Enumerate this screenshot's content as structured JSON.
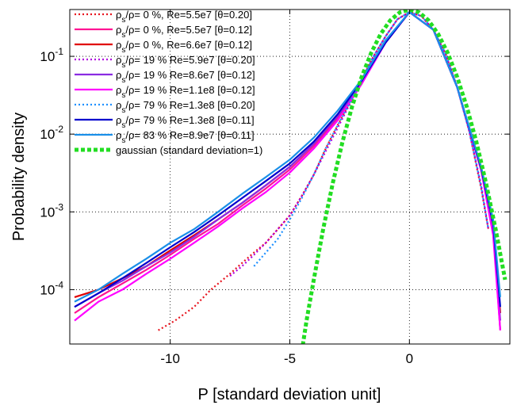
{
  "chart_data": {
    "type": "line",
    "title": "",
    "xlabel": "P [standard deviation unit]",
    "ylabel": "Probability density",
    "xlim": [
      -14.2,
      4.2
    ],
    "ylim": [
      2e-05,
      0.4
    ],
    "yscale": "log",
    "grid": true,
    "legend_position": "top-left",
    "x_ticks": [
      -10,
      -5,
      0
    ],
    "x_tick_labels": [
      "-10",
      "-5",
      "0"
    ],
    "y_ticks": [
      0.0001,
      0.001,
      0.01,
      0.1
    ],
    "y_tick_labels": [
      {
        "base": "10",
        "exp": "-4"
      },
      {
        "base": "10",
        "exp": "-3"
      },
      {
        "base": "10",
        "exp": "-2"
      },
      {
        "base": "10",
        "exp": "-1"
      }
    ],
    "series": [
      {
        "name": "ρs/ρ= 0 %, Re=5.5e7 [θ=0.20]",
        "color": "#e8141e",
        "dash": "dotted",
        "x": [
          -10.5,
          -9.8,
          -9.0,
          -8.3,
          -7.5,
          -7.0,
          -6.5,
          -6.0,
          -5.5,
          -5.0,
          -4.5,
          -4.0,
          -3.5,
          -3.0,
          -2.5,
          -2.0,
          -1.5,
          -1.0,
          -0.5,
          0,
          0.5,
          1.0,
          1.5,
          2.0,
          2.5,
          3.0,
          3.3
        ],
        "y": [
          3e-05,
          4e-05,
          6e-05,
          0.0001,
          0.00016,
          0.00022,
          0.0003,
          0.0004,
          0.0006,
          0.0009,
          0.0016,
          0.003,
          0.0065,
          0.013,
          0.025,
          0.05,
          0.1,
          0.18,
          0.3,
          0.37,
          0.33,
          0.22,
          0.11,
          0.04,
          0.011,
          0.002,
          0.0006
        ]
      },
      {
        "name": "ρs/ρ= 0 %, Re=5.5e7 [θ=0.12]",
        "color": "#ff1493",
        "dash": "solid",
        "x": [
          -14,
          -13,
          -12,
          -11,
          -10,
          -9,
          -8,
          -7,
          -6,
          -5,
          -4,
          -3,
          -2,
          -1,
          0,
          1,
          2,
          3,
          3.5,
          3.8
        ],
        "y": [
          5e-05,
          8e-05,
          0.00012,
          0.00018,
          0.00028,
          0.00045,
          0.0007,
          0.0012,
          0.002,
          0.0035,
          0.007,
          0.016,
          0.045,
          0.15,
          0.37,
          0.22,
          0.04,
          0.0035,
          0.0006,
          3e-05
        ]
      },
      {
        "name": "ρs/ρ= 0 %, Re=6.6e7 [θ=0.12]",
        "color": "#e00000",
        "dash": "solid",
        "x": [
          -14,
          -13,
          -12,
          -11,
          -10,
          -9,
          -8,
          -7,
          -6,
          -5,
          -4,
          -3,
          -2,
          -1,
          0,
          1,
          2,
          3,
          3.5,
          3.8
        ],
        "y": [
          8e-05,
          0.0001,
          0.00014,
          0.0002,
          0.00032,
          0.0005,
          0.0008,
          0.0013,
          0.0022,
          0.0038,
          0.0075,
          0.017,
          0.046,
          0.15,
          0.37,
          0.22,
          0.04,
          0.0036,
          0.0007,
          5e-05
        ]
      },
      {
        "name": "ρs/ρ= 19 % Re=5.9e7 [θ=0.20]",
        "color": "#b000e0",
        "dash": "dotted",
        "x": [
          -7.5,
          -7.0,
          -6.5,
          -6.0,
          -5.5,
          -5.0,
          -4.5,
          -4.0,
          -3.5,
          -3.0,
          -2.5,
          -2.0,
          -1.5,
          -1.0,
          -0.5,
          0,
          0.5,
          1.0,
          1.5,
          2.0,
          2.5,
          3.0,
          3.3
        ],
        "y": [
          0.00015,
          0.0002,
          0.00028,
          0.0004,
          0.0006,
          0.0009,
          0.0016,
          0.003,
          0.006,
          0.012,
          0.024,
          0.05,
          0.1,
          0.18,
          0.3,
          0.37,
          0.33,
          0.22,
          0.11,
          0.04,
          0.011,
          0.0022,
          0.0006
        ]
      },
      {
        "name": "ρs/ρ= 19 % Re=8.6e7 [θ=0.12]",
        "color": "#8a2be2",
        "dash": "solid",
        "x": [
          -14,
          -13,
          -12,
          -11,
          -10,
          -9,
          -8,
          -7,
          -6,
          -5,
          -4,
          -3,
          -2,
          -1,
          0,
          1,
          2,
          3,
          3.5,
          3.8
        ],
        "y": [
          6e-05,
          9e-05,
          0.00013,
          0.0002,
          0.0003,
          0.00048,
          0.0008,
          0.0013,
          0.0022,
          0.0038,
          0.0075,
          0.017,
          0.046,
          0.15,
          0.37,
          0.22,
          0.04,
          0.0035,
          0.0006,
          4e-05
        ]
      },
      {
        "name": "ρs/ρ= 19 % Re=1.1e8 [θ=0.12]",
        "color": "#ff00ff",
        "dash": "solid",
        "x": [
          -14,
          -13,
          -12,
          -11,
          -10,
          -9,
          -8,
          -7,
          -6,
          -5,
          -4,
          -3,
          -2,
          -1,
          0,
          1,
          2,
          3,
          3.5,
          3.8
        ],
        "y": [
          4e-05,
          7e-05,
          0.0001,
          0.00016,
          0.00025,
          0.0004,
          0.00065,
          0.0011,
          0.0018,
          0.0032,
          0.0065,
          0.015,
          0.044,
          0.15,
          0.37,
          0.22,
          0.04,
          0.0034,
          0.0005,
          3e-05
        ]
      },
      {
        "name": "ρs/ρ= 79 % Re=1.3e8 [θ=0.20]",
        "color": "#1e90ff",
        "dash": "dotted",
        "x": [
          -6.5,
          -6.0,
          -5.5,
          -5.0,
          -4.5,
          -4.0,
          -3.5,
          -3.0,
          -2.5,
          -2.0,
          -1.5,
          -1.0,
          -0.5,
          0,
          0.5,
          1.0,
          1.5,
          2.0,
          2.5,
          3.0,
          3.3
        ],
        "y": [
          0.0002,
          0.0003,
          0.00045,
          0.0008,
          0.0015,
          0.003,
          0.0065,
          0.013,
          0.025,
          0.05,
          0.1,
          0.18,
          0.3,
          0.37,
          0.33,
          0.22,
          0.11,
          0.04,
          0.011,
          0.0021,
          0.0006
        ]
      },
      {
        "name": "ρs/ρ= 79 % Re=1.3e8 [θ=0.11]",
        "color": "#0000cd",
        "dash": "solid",
        "x": [
          -14,
          -13,
          -12,
          -11,
          -10,
          -9,
          -8,
          -7,
          -6,
          -5,
          -4,
          -3,
          -2,
          -1,
          0,
          1,
          2,
          3,
          3.5,
          3.8
        ],
        "y": [
          6e-05,
          9e-05,
          0.00014,
          0.00022,
          0.00035,
          0.00055,
          0.0009,
          0.0015,
          0.0025,
          0.0042,
          0.008,
          0.018,
          0.048,
          0.15,
          0.37,
          0.22,
          0.04,
          0.0036,
          0.0007,
          6e-05
        ]
      },
      {
        "name": "ρs/ρ= 83 % Re=8.9e7 [θ=0.11]",
        "color": "#1a8fe8",
        "dash": "solid",
        "x": [
          -14,
          -13,
          -12,
          -11,
          -10,
          -9,
          -8,
          -7,
          -6,
          -5,
          -4,
          -3,
          -2,
          -1,
          0,
          1,
          2,
          3,
          3.5,
          3.8
        ],
        "y": [
          7e-05,
          0.0001,
          0.00016,
          0.00025,
          0.0004,
          0.0006,
          0.001,
          0.0017,
          0.0028,
          0.0047,
          0.009,
          0.02,
          0.05,
          0.16,
          0.37,
          0.22,
          0.04,
          0.0038,
          0.0008,
          8e-05
        ]
      },
      {
        "name": "gaussian (standard deviation=1)",
        "color": "#22dd22",
        "dash": "thickdash",
        "x": [
          -4.5,
          -4.3,
          -4.0,
          -3.6,
          -3.2,
          -2.8,
          -2.4,
          -2.0,
          -1.6,
          -1.2,
          -0.8,
          -0.4,
          0,
          0.4,
          0.8,
          1.2,
          1.6,
          2.0,
          2.4,
          2.8,
          3.2,
          3.6,
          4.0
        ],
        "y": [
          1.6e-05,
          4e-05,
          0.000134,
          0.00061,
          0.00238,
          0.00792,
          0.0224,
          0.054,
          0.1109,
          0.1942,
          0.2897,
          0.3683,
          0.3989,
          0.3683,
          0.2897,
          0.1942,
          0.1109,
          0.054,
          0.0224,
          0.00792,
          0.00238,
          0.00061,
          0.000134
        ]
      }
    ]
  }
}
